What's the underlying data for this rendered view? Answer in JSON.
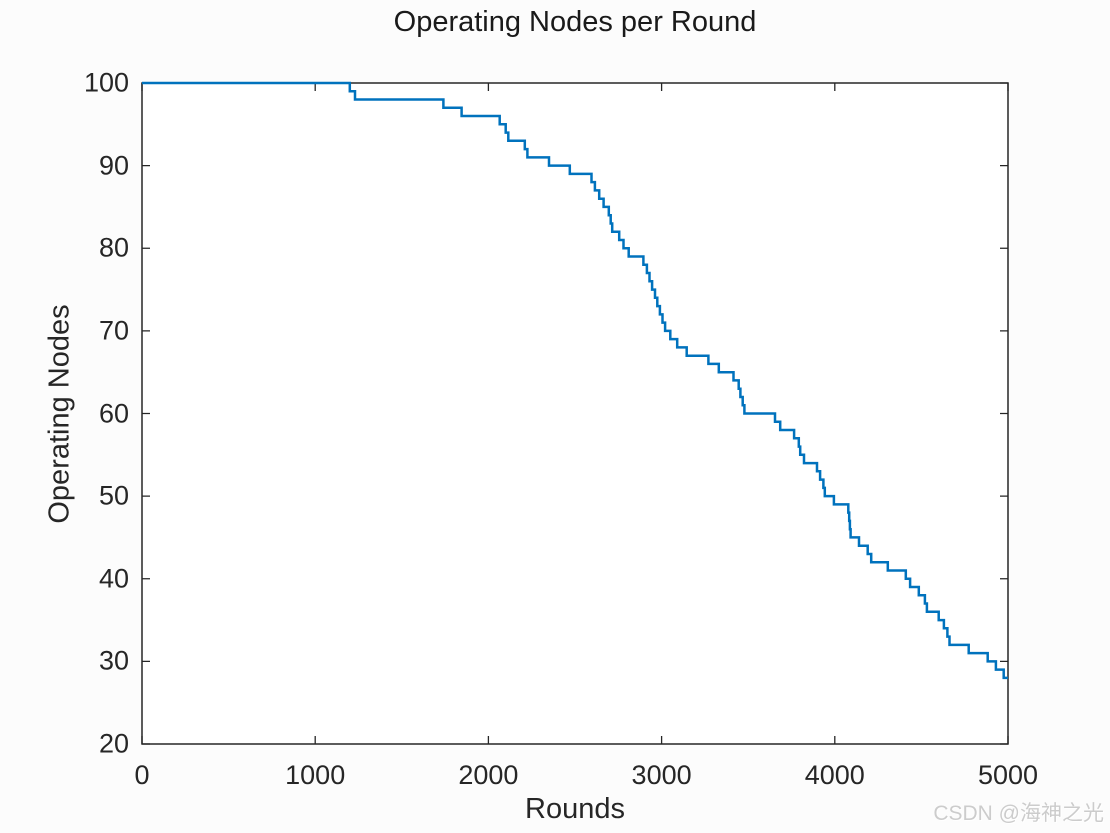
{
  "figure": {
    "background": "#fcfcfc",
    "plot_background": "#ffffff",
    "axes_color": "#262626",
    "text_color": "#262626"
  },
  "watermark": {
    "text": "CSDN @海神之光",
    "color": "#cccccc"
  },
  "chart_data": {
    "type": "line",
    "line_style": "stairs",
    "title": "Operating Nodes per Round",
    "xlabel": "Rounds",
    "ylabel": "Operating Nodes",
    "xlim": [
      0,
      5000
    ],
    "ylim": [
      20,
      100
    ],
    "x_ticks": [
      0,
      1000,
      2000,
      3000,
      4000,
      5000
    ],
    "y_ticks": [
      20,
      30,
      40,
      50,
      60,
      70,
      80,
      90,
      100
    ],
    "grid": false,
    "legend": null,
    "line_color": "#0072BD",
    "line_width": 2.5,
    "series": [
      {
        "name": "Operating Nodes",
        "steps": [
          [
            0,
            100
          ],
          [
            1200,
            99
          ],
          [
            1230,
            98
          ],
          [
            1740,
            97
          ],
          [
            1845,
            96
          ],
          [
            2065,
            95
          ],
          [
            2100,
            94
          ],
          [
            2115,
            93
          ],
          [
            2210,
            92
          ],
          [
            2225,
            91
          ],
          [
            2350,
            90
          ],
          [
            2470,
            89
          ],
          [
            2595,
            88
          ],
          [
            2615,
            87
          ],
          [
            2640,
            86
          ],
          [
            2665,
            85
          ],
          [
            2695,
            84
          ],
          [
            2706,
            83
          ],
          [
            2715,
            82
          ],
          [
            2755,
            81
          ],
          [
            2780,
            80
          ],
          [
            2810,
            79
          ],
          [
            2895,
            78
          ],
          [
            2915,
            77
          ],
          [
            2930,
            76
          ],
          [
            2945,
            75
          ],
          [
            2962,
            74
          ],
          [
            2975,
            73
          ],
          [
            2990,
            72
          ],
          [
            3005,
            71
          ],
          [
            3020,
            70
          ],
          [
            3050,
            69
          ],
          [
            3090,
            68
          ],
          [
            3145,
            67
          ],
          [
            3270,
            66
          ],
          [
            3330,
            65
          ],
          [
            3415,
            64
          ],
          [
            3445,
            63
          ],
          [
            3455,
            62
          ],
          [
            3468,
            61
          ],
          [
            3478,
            60
          ],
          [
            3655,
            59
          ],
          [
            3685,
            58
          ],
          [
            3765,
            57
          ],
          [
            3792,
            56
          ],
          [
            3800,
            55
          ],
          [
            3822,
            54
          ],
          [
            3897,
            53
          ],
          [
            3915,
            52
          ],
          [
            3934,
            51
          ],
          [
            3942,
            50
          ],
          [
            3995,
            49
          ],
          [
            4078,
            48
          ],
          [
            4083,
            47
          ],
          [
            4087,
            46
          ],
          [
            4091,
            45
          ],
          [
            4140,
            44
          ],
          [
            4190,
            43
          ],
          [
            4210,
            42
          ],
          [
            4306,
            41
          ],
          [
            4410,
            40
          ],
          [
            4435,
            39
          ],
          [
            4485,
            38
          ],
          [
            4520,
            37
          ],
          [
            4532,
            36
          ],
          [
            4600,
            35
          ],
          [
            4630,
            34
          ],
          [
            4650,
            33
          ],
          [
            4662,
            32
          ],
          [
            4773,
            31
          ],
          [
            4883,
            30
          ],
          [
            4930,
            29
          ],
          [
            4975,
            28
          ]
        ],
        "end_x": 5000,
        "final_value": 28
      }
    ]
  }
}
